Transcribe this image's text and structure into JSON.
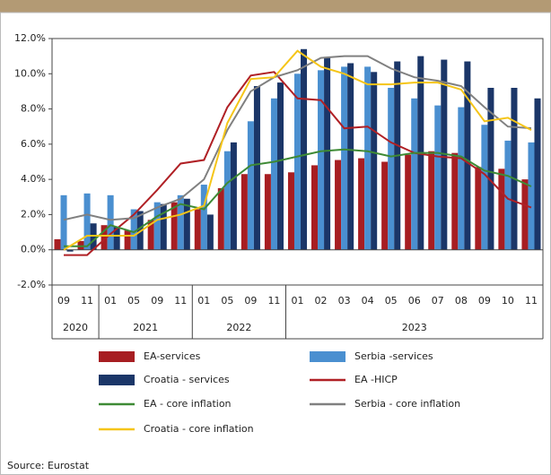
{
  "chart_data": {
    "type": "bar-line",
    "categories": [
      "09",
      "11",
      "01",
      "05",
      "09",
      "11",
      "01",
      "05",
      "09",
      "11",
      "01",
      "02",
      "03",
      "04",
      "05",
      "06",
      "07",
      "08",
      "09",
      "10",
      "11"
    ],
    "years": [
      "2020",
      null,
      "2021",
      null,
      null,
      null,
      "2022",
      null,
      null,
      null,
      "2023",
      null,
      null,
      null,
      null,
      null,
      null,
      null,
      null,
      null,
      null
    ],
    "ylim": [
      -2,
      12
    ],
    "yticks": [
      {
        "value": -2,
        "label": "-2.0%"
      },
      {
        "value": 0,
        "label": "0.0%"
      },
      {
        "value": 2,
        "label": "2.0%"
      },
      {
        "value": 4,
        "label": "4.0%"
      },
      {
        "value": 6,
        "label": "6.0%"
      },
      {
        "value": 8,
        "label": "8.0%"
      },
      {
        "value": 10,
        "label": "10.0%"
      },
      {
        "value": 12,
        "label": "12.0%"
      }
    ],
    "grid": false,
    "series": [
      {
        "name": "EA-services",
        "type": "bar",
        "color": "#a71e22",
        "values": [
          0.6,
          0.5,
          1.4,
          1.1,
          1.7,
          2.7,
          2.3,
          3.5,
          4.3,
          4.3,
          4.4,
          4.8,
          5.1,
          5.2,
          5.0,
          5.4,
          5.6,
          5.5,
          4.7,
          4.6,
          4.0
        ]
      },
      {
        "name": "Serbia -services",
        "type": "bar",
        "color": "#4a8fd0",
        "values": [
          3.1,
          3.2,
          3.1,
          2.3,
          2.7,
          3.1,
          3.7,
          5.6,
          7.3,
          8.6,
          10.0,
          10.2,
          10.4,
          10.4,
          9.2,
          8.6,
          8.2,
          8.1,
          7.1,
          6.2,
          6.1
        ]
      },
      {
        "name": "Croatia - services",
        "type": "bar",
        "color": "#1b3668",
        "values": [
          -0.1,
          1.5,
          1.3,
          2.2,
          2.6,
          2.9,
          2.0,
          6.1,
          9.3,
          9.5,
          11.4,
          10.9,
          10.6,
          10.1,
          10.7,
          11.0,
          10.8,
          10.7,
          9.2,
          9.2,
          8.6
        ]
      },
      {
        "name": "EA -HICP",
        "type": "line",
        "color": "#b02025",
        "values": [
          -0.3,
          -0.3,
          0.9,
          2.0,
          3.4,
          4.9,
          5.1,
          8.1,
          9.9,
          10.1,
          8.6,
          8.5,
          6.9,
          7.0,
          6.1,
          5.5,
          5.3,
          5.2,
          4.3,
          2.9,
          2.4
        ]
      },
      {
        "name": "EA - core inflation",
        "type": "line",
        "color": "#3e8a35",
        "values": [
          0.2,
          0.2,
          1.4,
          1.0,
          1.9,
          2.6,
          2.3,
          3.8,
          4.8,
          5.0,
          5.3,
          5.6,
          5.7,
          5.6,
          5.3,
          5.5,
          5.5,
          5.3,
          4.5,
          4.2,
          3.6
        ]
      },
      {
        "name": "Serbia  - core inflation",
        "type": "line",
        "color": "#808080",
        "values": [
          1.7,
          2.0,
          1.7,
          1.8,
          2.4,
          2.9,
          4.0,
          6.8,
          9.0,
          9.8,
          10.2,
          10.9,
          11.0,
          11.0,
          10.3,
          9.8,
          9.6,
          9.3,
          8.1,
          7.0,
          6.9
        ]
      },
      {
        "name": "Croatia - core inflation",
        "type": "line",
        "color": "#f5c518",
        "values": [
          0.0,
          0.8,
          0.8,
          0.8,
          1.7,
          2.0,
          2.5,
          7.2,
          9.7,
          9.8,
          11.3,
          10.4,
          10.0,
          9.4,
          9.4,
          9.5,
          9.5,
          9.1,
          7.3,
          7.5,
          6.8
        ]
      }
    ],
    "source": "Source: Eurostat"
  }
}
